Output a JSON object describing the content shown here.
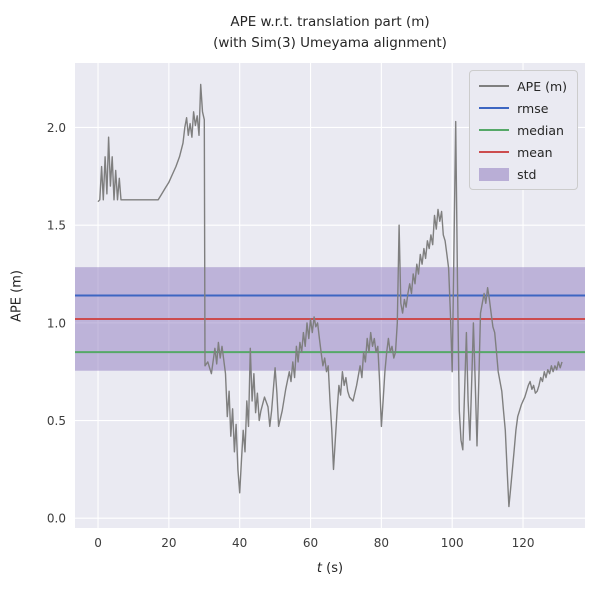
{
  "figure": {
    "title_line1": "APE w.r.t. translation part (m)",
    "title_line2": "(with Sim(3) Umeyama alignment)"
  },
  "chart_data": {
    "type": "line",
    "title": "APE w.r.t. translation part (m)\n(with Sim(3) Umeyama alignment)",
    "xlabel": "t (s)",
    "xlabel_var": "t",
    "xlabel_unit": " (s)",
    "ylabel": "APE (m)",
    "xlim": [
      -6.5,
      137.5
    ],
    "ylim": [
      -0.05,
      2.33
    ],
    "xticks": [
      0,
      20,
      40,
      60,
      80,
      100,
      120
    ],
    "yticks": [
      0,
      0.5,
      1,
      1.5,
      2
    ],
    "grid": true,
    "legend_position": "upper right",
    "colors": {
      "axes_bg": "#eaeaf2",
      "grid": "#ffffff",
      "ape_line": "#7f7f7f",
      "rmse": "#3d66c2",
      "median": "#55a868",
      "mean": "#cc4c4e",
      "std_band": "#8f7cc0",
      "text": "#262626"
    },
    "stats": {
      "rmse": 1.14,
      "mean": 1.02,
      "median": 0.85,
      "std_lower": 0.755,
      "std_upper": 1.285
    },
    "legend": [
      {
        "label": "APE (m)",
        "color_key": "ape_line",
        "swatch": "line"
      },
      {
        "label": "rmse",
        "color_key": "rmse",
        "swatch": "line"
      },
      {
        "label": "median",
        "color_key": "median",
        "swatch": "line"
      },
      {
        "label": "mean",
        "color_key": "mean",
        "swatch": "line"
      },
      {
        "label": "std",
        "color_key": "std_band",
        "swatch": "band"
      }
    ],
    "series": [
      {
        "name": "APE (m)",
        "points": [
          [
            0,
            1.62
          ],
          [
            0.5,
            1.63
          ],
          [
            1,
            1.8
          ],
          [
            1.5,
            1.63
          ],
          [
            2,
            1.85
          ],
          [
            2.5,
            1.66
          ],
          [
            3,
            1.95
          ],
          [
            3.5,
            1.7
          ],
          [
            4,
            1.85
          ],
          [
            4.5,
            1.63
          ],
          [
            5,
            1.78
          ],
          [
            5.5,
            1.63
          ],
          [
            6,
            1.74
          ],
          [
            6.5,
            1.63
          ],
          [
            7,
            1.63
          ],
          [
            8,
            1.63
          ],
          [
            9,
            1.63
          ],
          [
            10,
            1.63
          ],
          [
            11,
            1.63
          ],
          [
            12,
            1.63
          ],
          [
            13,
            1.63
          ],
          [
            14,
            1.63
          ],
          [
            15,
            1.63
          ],
          [
            16,
            1.63
          ],
          [
            17,
            1.63
          ],
          [
            18,
            1.66
          ],
          [
            19,
            1.69
          ],
          [
            20,
            1.72
          ],
          [
            21,
            1.76
          ],
          [
            22,
            1.8
          ],
          [
            23,
            1.85
          ],
          [
            24,
            1.92
          ],
          [
            24.5,
            2.0
          ],
          [
            25,
            2.05
          ],
          [
            25.5,
            1.96
          ],
          [
            26,
            2.02
          ],
          [
            26.5,
            1.95
          ],
          [
            27,
            2.08
          ],
          [
            27.5,
            2.01
          ],
          [
            28,
            2.06
          ],
          [
            28.5,
            1.96
          ],
          [
            29,
            2.22
          ],
          [
            29.5,
            2.08
          ],
          [
            30,
            2.04
          ],
          [
            30.2,
            0.78
          ],
          [
            31,
            0.8
          ],
          [
            32,
            0.74
          ],
          [
            33,
            0.87
          ],
          [
            33.5,
            0.79
          ],
          [
            34,
            0.9
          ],
          [
            34.5,
            0.82
          ],
          [
            35,
            0.88
          ],
          [
            36,
            0.74
          ],
          [
            36.5,
            0.52
          ],
          [
            37,
            0.65
          ],
          [
            37.5,
            0.42
          ],
          [
            38,
            0.56
          ],
          [
            38.5,
            0.34
          ],
          [
            39,
            0.48
          ],
          [
            39.5,
            0.25
          ],
          [
            40,
            0.13
          ],
          [
            40.5,
            0.3
          ],
          [
            41,
            0.45
          ],
          [
            41.5,
            0.34
          ],
          [
            42,
            0.6
          ],
          [
            42.5,
            0.47
          ],
          [
            43,
            0.87
          ],
          [
            43.5,
            0.6
          ],
          [
            44,
            0.74
          ],
          [
            44.5,
            0.54
          ],
          [
            45,
            0.64
          ],
          [
            45.5,
            0.5
          ],
          [
            46,
            0.55
          ],
          [
            47,
            0.62
          ],
          [
            48,
            0.57
          ],
          [
            48.5,
            0.47
          ],
          [
            49,
            0.55
          ],
          [
            50,
            0.77
          ],
          [
            50.5,
            0.64
          ],
          [
            51,
            0.47
          ],
          [
            52,
            0.55
          ],
          [
            53,
            0.66
          ],
          [
            54,
            0.75
          ],
          [
            54.5,
            0.7
          ],
          [
            55,
            0.8
          ],
          [
            55.5,
            0.72
          ],
          [
            56,
            0.88
          ],
          [
            56.5,
            0.8
          ],
          [
            57,
            0.9
          ],
          [
            57.5,
            0.85
          ],
          [
            58,
            0.95
          ],
          [
            58.5,
            0.88
          ],
          [
            59,
            1.0
          ],
          [
            59.5,
            0.92
          ],
          [
            60,
            1.02
          ],
          [
            60.5,
            0.95
          ],
          [
            61,
            1.03
          ],
          [
            61.5,
            0.98
          ],
          [
            62,
            1.0
          ],
          [
            62.5,
            0.92
          ],
          [
            63,
            0.85
          ],
          [
            63.5,
            0.78
          ],
          [
            64,
            0.82
          ],
          [
            64.5,
            0.75
          ],
          [
            65,
            0.78
          ],
          [
            65.5,
            0.6
          ],
          [
            66,
            0.45
          ],
          [
            66.5,
            0.25
          ],
          [
            67,
            0.4
          ],
          [
            67.5,
            0.55
          ],
          [
            68,
            0.68
          ],
          [
            68.5,
            0.63
          ],
          [
            69,
            0.75
          ],
          [
            69.5,
            0.68
          ],
          [
            70,
            0.72
          ],
          [
            70.5,
            0.65
          ],
          [
            71,
            0.62
          ],
          [
            72,
            0.6
          ],
          [
            73,
            0.68
          ],
          [
            74,
            0.78
          ],
          [
            74.5,
            0.72
          ],
          [
            75,
            0.85
          ],
          [
            75.5,
            0.8
          ],
          [
            76,
            0.92
          ],
          [
            76.5,
            0.85
          ],
          [
            77,
            0.95
          ],
          [
            77.5,
            0.88
          ],
          [
            78,
            0.92
          ],
          [
            78.5,
            0.85
          ],
          [
            79,
            0.88
          ],
          [
            79.5,
            0.7
          ],
          [
            80,
            0.47
          ],
          [
            80.5,
            0.6
          ],
          [
            81,
            0.75
          ],
          [
            81.5,
            0.85
          ],
          [
            82,
            0.92
          ],
          [
            82.5,
            0.85
          ],
          [
            83,
            0.88
          ],
          [
            83.5,
            0.82
          ],
          [
            84,
            0.85
          ],
          [
            84.5,
            1.0
          ],
          [
            85,
            1.5
          ],
          [
            85.5,
            1.1
          ],
          [
            86,
            1.05
          ],
          [
            86.5,
            1.12
          ],
          [
            87,
            1.08
          ],
          [
            87.5,
            1.15
          ],
          [
            88,
            1.2
          ],
          [
            88.5,
            1.15
          ],
          [
            89,
            1.25
          ],
          [
            89.5,
            1.2
          ],
          [
            90,
            1.3
          ],
          [
            90.5,
            1.25
          ],
          [
            91,
            1.35
          ],
          [
            91.5,
            1.3
          ],
          [
            92,
            1.38
          ],
          [
            92.5,
            1.33
          ],
          [
            93,
            1.42
          ],
          [
            93.5,
            1.38
          ],
          [
            94,
            1.45
          ],
          [
            94.5,
            1.4
          ],
          [
            95,
            1.55
          ],
          [
            95.5,
            1.48
          ],
          [
            96,
            1.58
          ],
          [
            96.5,
            1.52
          ],
          [
            97,
            1.57
          ],
          [
            97.5,
            1.45
          ],
          [
            98,
            1.42
          ],
          [
            98.5,
            1.35
          ],
          [
            99,
            1.28
          ],
          [
            99.5,
            1.05
          ],
          [
            100,
            0.75
          ],
          [
            100.5,
            1.4
          ],
          [
            101,
            2.03
          ],
          [
            101.5,
            1.2
          ],
          [
            102,
            0.55
          ],
          [
            102.5,
            0.4
          ],
          [
            103,
            0.35
          ],
          [
            103.5,
            0.65
          ],
          [
            104,
            0.95
          ],
          [
            104.5,
            0.6
          ],
          [
            105,
            0.4
          ],
          [
            105.5,
            0.7
          ],
          [
            106,
            1.0
          ],
          [
            106.5,
            0.7
          ],
          [
            107,
            0.37
          ],
          [
            107.5,
            0.7
          ],
          [
            108,
            1.05
          ],
          [
            108.5,
            1.1
          ],
          [
            109,
            1.15
          ],
          [
            109.5,
            1.1
          ],
          [
            110,
            1.18
          ],
          [
            110.5,
            1.12
          ],
          [
            111,
            1.05
          ],
          [
            111.5,
            0.98
          ],
          [
            112,
            0.95
          ],
          [
            112.5,
            0.85
          ],
          [
            113,
            0.75
          ],
          [
            113.5,
            0.7
          ],
          [
            114,
            0.65
          ],
          [
            114.5,
            0.55
          ],
          [
            115,
            0.45
          ],
          [
            115.5,
            0.25
          ],
          [
            116,
            0.06
          ],
          [
            116.5,
            0.15
          ],
          [
            117,
            0.25
          ],
          [
            117.5,
            0.35
          ],
          [
            118,
            0.45
          ],
          [
            118.5,
            0.52
          ],
          [
            119,
            0.55
          ],
          [
            119.5,
            0.58
          ],
          [
            120,
            0.6
          ],
          [
            120.5,
            0.62
          ],
          [
            121,
            0.65
          ],
          [
            121.5,
            0.68
          ],
          [
            122,
            0.7
          ],
          [
            122.5,
            0.66
          ],
          [
            123,
            0.68
          ],
          [
            123.5,
            0.64
          ],
          [
            124,
            0.65
          ],
          [
            124.5,
            0.68
          ],
          [
            125,
            0.72
          ],
          [
            125.5,
            0.7
          ],
          [
            126,
            0.75
          ],
          [
            126.5,
            0.72
          ],
          [
            127,
            0.76
          ],
          [
            127.5,
            0.74
          ],
          [
            128,
            0.78
          ],
          [
            128.5,
            0.75
          ],
          [
            129,
            0.78
          ],
          [
            129.5,
            0.76
          ],
          [
            130,
            0.8
          ],
          [
            130.5,
            0.77
          ],
          [
            131,
            0.8
          ]
        ]
      }
    ]
  }
}
